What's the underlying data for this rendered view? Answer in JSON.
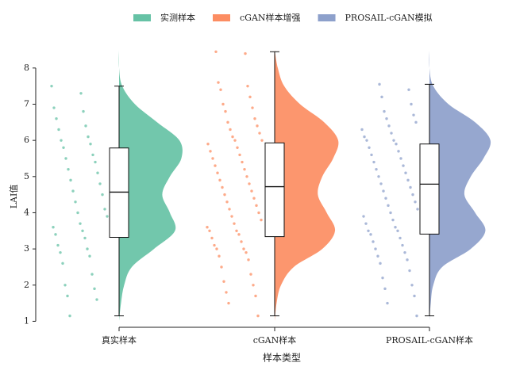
{
  "chart_data": {
    "type": "raincloud",
    "x_label": "样本类型",
    "y_label": "LAI值",
    "ylim": [
      0.9,
      8.5
    ],
    "yticks": [
      1,
      2,
      3,
      4,
      5,
      6,
      7,
      8
    ],
    "density_y": [
      1,
      1.5,
      2,
      2.5,
      3,
      3.5,
      4,
      4.5,
      5,
      5.5,
      6,
      6.5,
      7,
      7.5,
      8,
      8.5
    ],
    "series": [
      {
        "name": "实测样本",
        "category": "真实样本",
        "color": "#66c2a5",
        "box": {
          "min": 1.15,
          "q1": 3.32,
          "median": 4.57,
          "q3": 5.79,
          "max": 7.5
        },
        "density": [
          0,
          0.03,
          0.08,
          0.2,
          0.55,
          0.88,
          0.8,
          0.68,
          0.8,
          0.98,
          0.95,
          0.6,
          0.25,
          0.05,
          0,
          0
        ],
        "points": [
          7.5,
          7.3,
          6.9,
          6.8,
          6.6,
          6.4,
          6.3,
          6.1,
          6.0,
          5.9,
          5.8,
          5.6,
          5.5,
          5.4,
          5.2,
          5.1,
          4.9,
          4.8,
          4.6,
          4.5,
          4.3,
          4.1,
          4.0,
          3.9,
          3.7,
          3.6,
          3.5,
          3.4,
          3.3,
          3.1,
          3.0,
          2.9,
          2.8,
          2.6,
          2.3,
          2.0,
          1.9,
          1.7,
          1.6,
          1.15
        ]
      },
      {
        "name": "cGAN样本增强",
        "category": "cGAN样本",
        "color": "#fc8d62",
        "box": {
          "min": 1.15,
          "q1": 3.34,
          "median": 4.72,
          "q3": 5.93,
          "max": 8.45
        },
        "density": [
          0,
          0.03,
          0.1,
          0.3,
          0.75,
          0.95,
          0.82,
          0.68,
          0.75,
          0.92,
          1,
          0.78,
          0.4,
          0.15,
          0.05,
          0
        ],
        "points": [
          8.45,
          8.4,
          7.6,
          7.5,
          7.4,
          7.2,
          7.0,
          6.9,
          6.8,
          6.6,
          6.5,
          6.4,
          6.3,
          6.2,
          6.1,
          6.0,
          6.0,
          5.9,
          5.8,
          5.7,
          5.6,
          5.5,
          5.4,
          5.3,
          5.2,
          5.1,
          5.0,
          4.9,
          4.8,
          4.7,
          4.6,
          4.5,
          4.4,
          4.3,
          4.2,
          4.1,
          4.0,
          3.9,
          3.8,
          3.7,
          3.6,
          3.5,
          3.5,
          3.4,
          3.3,
          3.2,
          3.1,
          3.0,
          3.0,
          2.9,
          2.8,
          2.7,
          2.5,
          2.3,
          2.1,
          2.0,
          1.8,
          1.7,
          1.5,
          1.15
        ]
      },
      {
        "name": "PROSAIL-cGAN模拟",
        "category": "PROSAIL-cGAN样本",
        "color": "#8da0cb",
        "box": {
          "min": 1.15,
          "q1": 3.41,
          "median": 4.79,
          "q3": 5.9,
          "max": 7.55
        },
        "density": [
          0,
          0.02,
          0.06,
          0.2,
          0.65,
          0.88,
          0.72,
          0.55,
          0.65,
          0.85,
          0.96,
          0.72,
          0.3,
          0.06,
          0,
          0
        ],
        "points": [
          7.55,
          7.4,
          7.2,
          7.0,
          6.8,
          6.7,
          6.6,
          6.5,
          6.4,
          6.3,
          6.2,
          6.1,
          6.0,
          6.0,
          5.9,
          5.8,
          5.7,
          5.6,
          5.5,
          5.4,
          5.3,
          5.2,
          5.1,
          5.0,
          4.9,
          4.8,
          4.7,
          4.6,
          4.5,
          4.4,
          4.3,
          4.2,
          4.1,
          4.0,
          3.9,
          3.8,
          3.7,
          3.6,
          3.5,
          3.5,
          3.4,
          3.3,
          3.2,
          3.1,
          3.0,
          2.9,
          2.8,
          2.7,
          2.6,
          2.4,
          2.2,
          2.0,
          1.9,
          1.7,
          1.5,
          1.15
        ]
      }
    ]
  }
}
